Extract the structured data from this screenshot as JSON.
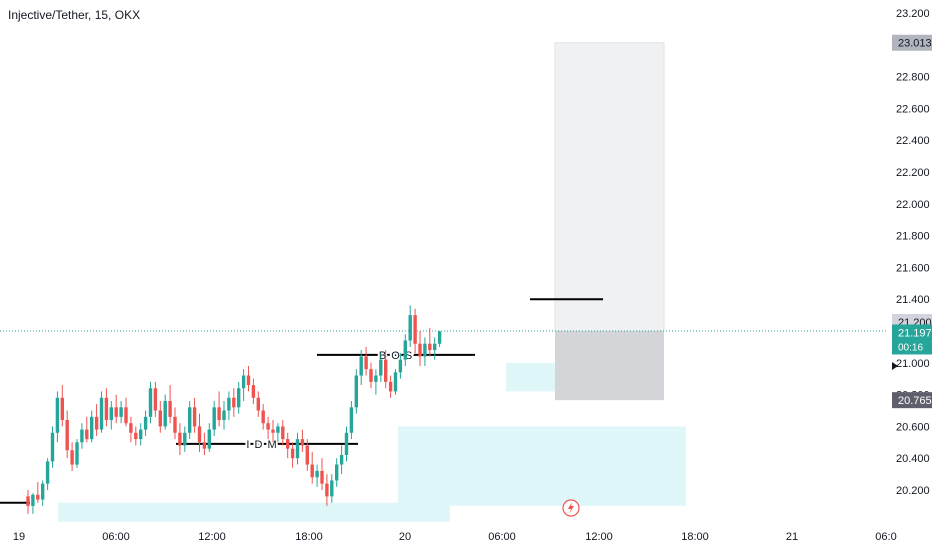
{
  "header": {
    "title": "Injective/Tether, 15, OKX"
  },
  "chart_data": {
    "type": "candlestick",
    "title": "Injective/Tether, 15, OKX",
    "symbol": "Injective/Tether",
    "interval": "15",
    "exchange": "OKX",
    "ylim": [
      20.05,
      23.28
    ],
    "grid": false,
    "y_ticks": [
      "23.200",
      "22.800",
      "22.600",
      "22.400",
      "22.200",
      "22.000",
      "21.800",
      "21.600",
      "21.400",
      "21.000",
      "20.800",
      "20.600",
      "20.400",
      "20.200"
    ],
    "x_ticks": [
      "19",
      "06:00",
      "12:00",
      "18:00",
      "20",
      "06:00",
      "12:00",
      "18:00",
      "21",
      "06:0"
    ],
    "price_labels": [
      {
        "label": "23.013",
        "kind": "target"
      },
      {
        "label": "21.200",
        "kind": "entry"
      },
      {
        "label": "21.197",
        "kind": "last"
      },
      {
        "label": "00:16",
        "kind": "countdown"
      },
      {
        "label": "20.765",
        "kind": "stop"
      }
    ],
    "annotations": [
      {
        "text": "B O S",
        "price": 21.05
      },
      {
        "text": "I D M",
        "price": 20.49
      }
    ],
    "colors": {
      "up": "#26a69a",
      "down": "#ef5350",
      "entry": "#26a69a",
      "zone": "#e0f7fa",
      "target_zone": "#f0f1f2",
      "stop_zone": "#d3d5d8"
    },
    "candles": [
      [
        20.16,
        20.2,
        20.05,
        20.1
      ],
      [
        20.1,
        20.18,
        20.05,
        20.17
      ],
      [
        20.17,
        20.25,
        20.12,
        20.14
      ],
      [
        20.14,
        20.26,
        20.1,
        20.24
      ],
      [
        20.24,
        20.4,
        20.2,
        20.38
      ],
      [
        20.38,
        20.6,
        20.34,
        20.56
      ],
      [
        20.56,
        20.82,
        20.5,
        20.78
      ],
      [
        20.78,
        20.86,
        20.6,
        20.64
      ],
      [
        20.64,
        20.7,
        20.4,
        20.45
      ],
      [
        20.45,
        20.5,
        20.32,
        20.36
      ],
      [
        20.36,
        20.52,
        20.34,
        20.5
      ],
      [
        20.5,
        20.62,
        20.46,
        20.58
      ],
      [
        20.58,
        20.66,
        20.5,
        20.52
      ],
      [
        20.52,
        20.7,
        20.5,
        20.66
      ],
      [
        20.66,
        20.74,
        20.54,
        20.58
      ],
      [
        20.58,
        20.82,
        20.56,
        20.78
      ],
      [
        20.78,
        20.84,
        20.6,
        20.64
      ],
      [
        20.64,
        20.76,
        20.58,
        20.72
      ],
      [
        20.72,
        20.8,
        20.62,
        20.66
      ],
      [
        20.66,
        20.76,
        20.62,
        20.72
      ],
      [
        20.72,
        20.78,
        20.6,
        20.62
      ],
      [
        20.62,
        20.66,
        20.5,
        20.56
      ],
      [
        20.56,
        20.6,
        20.48,
        20.52
      ],
      [
        20.52,
        20.62,
        20.48,
        20.58
      ],
      [
        20.58,
        20.7,
        20.54,
        20.66
      ],
      [
        20.66,
        20.88,
        20.62,
        20.84
      ],
      [
        20.84,
        20.88,
        20.66,
        20.7
      ],
      [
        20.7,
        20.76,
        20.56,
        20.6
      ],
      [
        20.6,
        20.8,
        20.58,
        20.76
      ],
      [
        20.76,
        20.86,
        20.62,
        20.66
      ],
      [
        20.66,
        20.72,
        20.52,
        20.56
      ],
      [
        20.56,
        20.62,
        20.42,
        20.48
      ],
      [
        20.48,
        20.6,
        20.44,
        20.56
      ],
      [
        20.56,
        20.76,
        20.52,
        20.72
      ],
      [
        20.72,
        20.78,
        20.56,
        20.6
      ],
      [
        20.6,
        20.68,
        20.44,
        20.5
      ],
      [
        20.5,
        20.56,
        20.42,
        20.46
      ],
      [
        20.46,
        20.62,
        20.44,
        20.58
      ],
      [
        20.58,
        20.76,
        20.54,
        20.72
      ],
      [
        20.72,
        20.82,
        20.6,
        20.64
      ],
      [
        20.64,
        20.76,
        20.58,
        20.7
      ],
      [
        20.7,
        20.82,
        20.64,
        20.78
      ],
      [
        20.78,
        20.84,
        20.66,
        20.72
      ],
      [
        20.72,
        20.88,
        20.68,
        20.84
      ],
      [
        20.84,
        20.96,
        20.76,
        20.92
      ],
      [
        20.92,
        20.98,
        20.82,
        20.86
      ],
      [
        20.86,
        20.9,
        20.74,
        20.78
      ],
      [
        20.78,
        20.82,
        20.66,
        20.7
      ],
      [
        20.7,
        20.74,
        20.58,
        20.62
      ],
      [
        20.62,
        20.66,
        20.52,
        20.58
      ],
      [
        20.58,
        20.64,
        20.5,
        20.56
      ],
      [
        20.56,
        20.62,
        20.5,
        20.6
      ],
      [
        20.6,
        20.64,
        20.48,
        20.52
      ],
      [
        20.52,
        20.56,
        20.4,
        20.46
      ],
      [
        20.46,
        20.5,
        20.34,
        20.4
      ],
      [
        20.4,
        20.56,
        20.36,
        20.52
      ],
      [
        20.52,
        20.58,
        20.44,
        20.48
      ],
      [
        20.48,
        20.52,
        20.32,
        20.36
      ],
      [
        20.36,
        20.44,
        20.24,
        20.28
      ],
      [
        20.28,
        20.36,
        20.22,
        20.32
      ],
      [
        20.32,
        20.4,
        20.2,
        20.24
      ],
      [
        20.24,
        20.3,
        20.1,
        20.16
      ],
      [
        20.16,
        20.3,
        20.12,
        20.26
      ],
      [
        20.26,
        20.4,
        20.22,
        20.36
      ],
      [
        20.36,
        20.48,
        20.3,
        20.42
      ],
      [
        20.42,
        20.6,
        20.38,
        20.56
      ],
      [
        20.56,
        20.76,
        20.52,
        20.72
      ],
      [
        20.72,
        20.96,
        20.68,
        20.92
      ],
      [
        20.92,
        21.08,
        20.86,
        21.04
      ],
      [
        21.04,
        21.1,
        20.92,
        20.96
      ],
      [
        20.96,
        21.0,
        20.84,
        20.88
      ],
      [
        20.88,
        20.96,
        20.8,
        20.92
      ],
      [
        20.92,
        21.06,
        20.88,
        21.02
      ],
      [
        21.02,
        21.08,
        20.84,
        20.88
      ],
      [
        20.88,
        20.92,
        20.78,
        20.82
      ],
      [
        20.82,
        20.96,
        20.8,
        20.94
      ],
      [
        20.94,
        21.06,
        20.9,
        21.02
      ],
      [
        21.02,
        21.18,
        20.98,
        21.14
      ],
      [
        21.14,
        21.36,
        21.1,
        21.3
      ],
      [
        21.3,
        21.34,
        21.06,
        21.12
      ],
      [
        21.12,
        21.2,
        20.98,
        21.04
      ],
      [
        21.04,
        21.16,
        20.98,
        21.12
      ],
      [
        21.12,
        21.22,
        21.04,
        21.08
      ],
      [
        21.08,
        21.16,
        21.02,
        21.12
      ],
      [
        21.12,
        21.2,
        21.1,
        21.197
      ]
    ]
  }
}
